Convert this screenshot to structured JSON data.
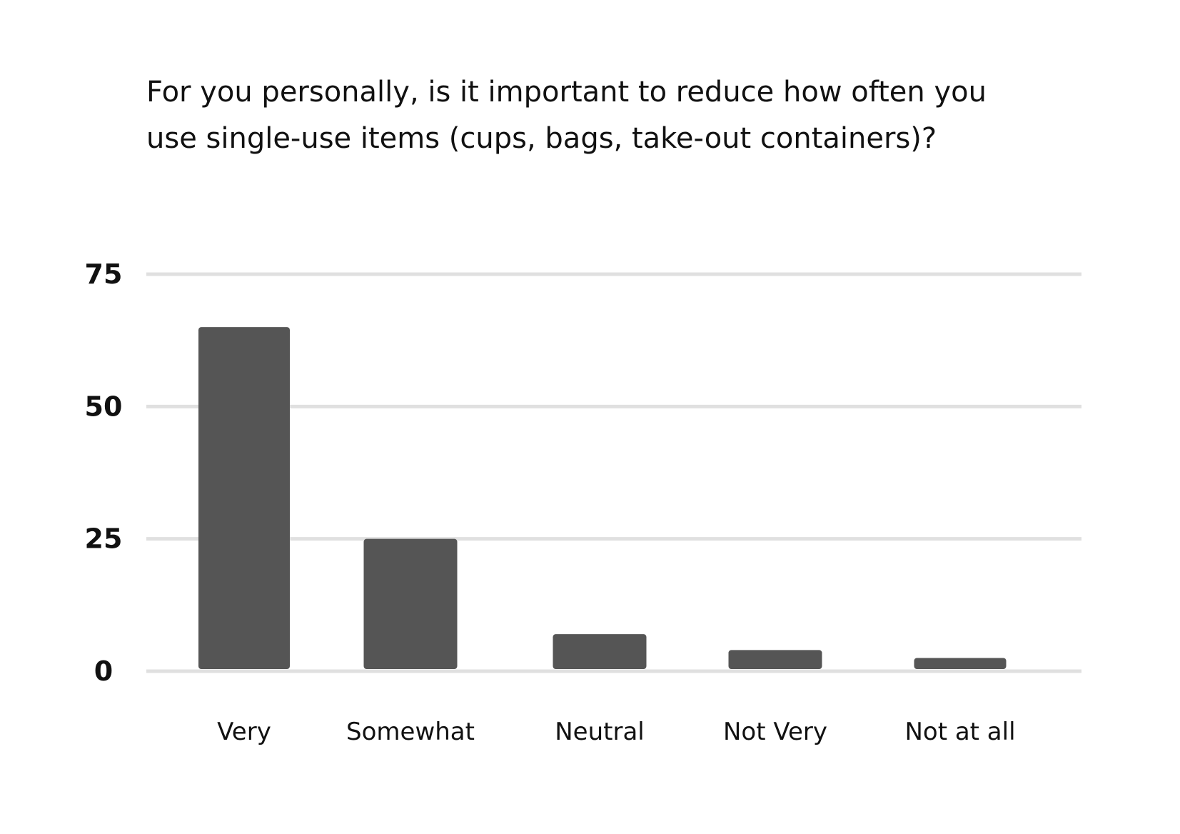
{
  "chart_data": {
    "type": "bar",
    "title_lines": [
      "For you personally, is it important to reduce how often you",
      "use single-use items (cups, bags, take-out containers)?"
    ],
    "categories": [
      "Very",
      "Somewhat",
      "Neutral",
      "Not Very",
      "Not at all"
    ],
    "values": [
      65,
      25,
      7,
      4,
      2.5
    ],
    "xlabel": "",
    "ylabel": "",
    "ylim": [
      0,
      75
    ],
    "yticks": [
      0,
      25,
      50,
      75
    ],
    "grid": true,
    "legend": "none",
    "colors": {
      "bar": "#555555",
      "grid": "#e0e0e0",
      "text": "#111111"
    }
  }
}
